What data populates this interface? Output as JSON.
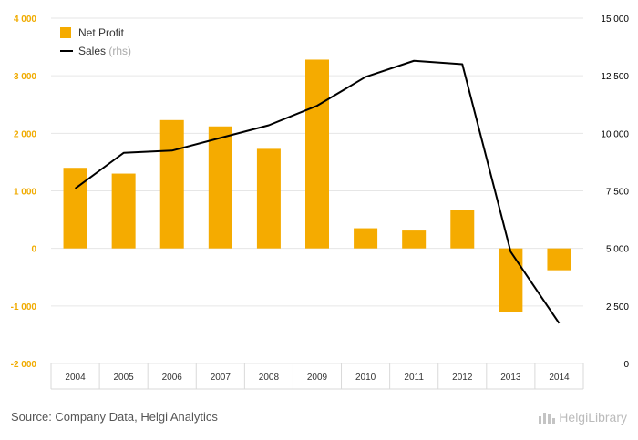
{
  "chart_data": {
    "type": "bar",
    "categories": [
      "2004",
      "2005",
      "2006",
      "2007",
      "2008",
      "2009",
      "2010",
      "2011",
      "2012",
      "2013",
      "2014"
    ],
    "series": [
      {
        "name": "Net Profit",
        "axis": "left",
        "type": "bar",
        "color": "#f5ab00",
        "values": [
          1400,
          1300,
          2230,
          2120,
          1730,
          3280,
          350,
          310,
          670,
          -1110,
          -380
        ]
      },
      {
        "name": "Sales",
        "axis": "right",
        "type": "line",
        "color": "#000000",
        "values": [
          7600,
          9150,
          9250,
          9800,
          10350,
          11200,
          12450,
          13150,
          13000,
          4850,
          1750
        ]
      }
    ],
    "left_axis": {
      "min": -2000,
      "max": 4000,
      "ticks": [
        -2000,
        -1000,
        0,
        1000,
        2000,
        3000,
        4000
      ],
      "tick_labels": [
        "-2 000",
        "-1 000",
        "0",
        "1 000",
        "2 000",
        "3 000",
        "4 000"
      ]
    },
    "right_axis": {
      "min": 0,
      "max": 15000,
      "ticks": [
        0,
        2500,
        5000,
        7500,
        10000,
        12500,
        15000
      ],
      "tick_labels": [
        "0",
        "2 500",
        "5 000",
        "7 500",
        "10 000",
        "12 500",
        "15 000"
      ]
    },
    "legend": {
      "position": "top-left",
      "entries": [
        {
          "label": "Net Profit",
          "suffix": ""
        },
        {
          "label": "Sales",
          "suffix": "(rhs)"
        }
      ]
    },
    "grid": true
  },
  "footer": {
    "source": "Source: Company Data, Helgi Analytics",
    "brand": "HelgiLibrary"
  }
}
